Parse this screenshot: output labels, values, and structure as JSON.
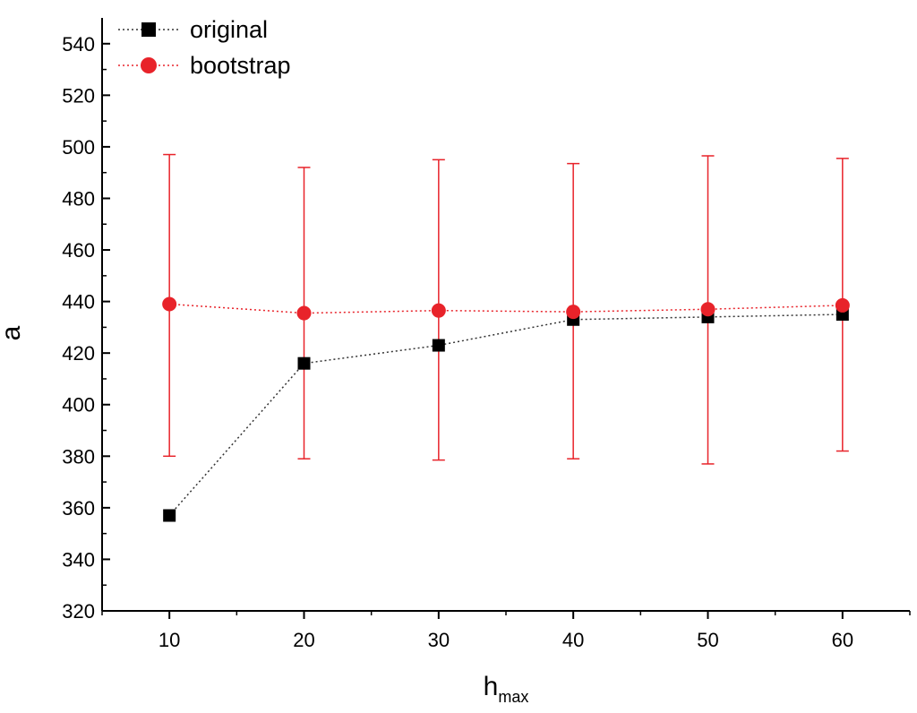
{
  "chart_data": {
    "type": "scatter",
    "title": "",
    "xlabel": "h",
    "xlabel_sub": "max",
    "ylabel": "a",
    "xlim": [
      5,
      65
    ],
    "ylim": [
      320,
      550
    ],
    "x_ticks": [
      10,
      20,
      30,
      40,
      50,
      60
    ],
    "y_ticks": [
      320,
      340,
      360,
      380,
      400,
      420,
      440,
      460,
      480,
      500,
      520,
      540
    ],
    "grid": false,
    "legend_position": "top-left",
    "series": [
      {
        "name": "original",
        "color": "#000000",
        "marker": "square",
        "line": "dotted",
        "x": [
          10,
          20,
          30,
          40,
          50,
          60
        ],
        "y": [
          357,
          416,
          423,
          433,
          434,
          435
        ]
      },
      {
        "name": "bootstrap",
        "color": "#e8232a",
        "marker": "circle",
        "line": "dotted",
        "x": [
          10,
          20,
          30,
          40,
          50,
          60
        ],
        "y": [
          439,
          435.5,
          436.5,
          436,
          437,
          438.5
        ],
        "error_low": [
          380,
          379,
          378.5,
          379,
          377,
          382
        ],
        "error_high": [
          497,
          492,
          495,
          493.5,
          496.5,
          495.5
        ]
      }
    ]
  }
}
